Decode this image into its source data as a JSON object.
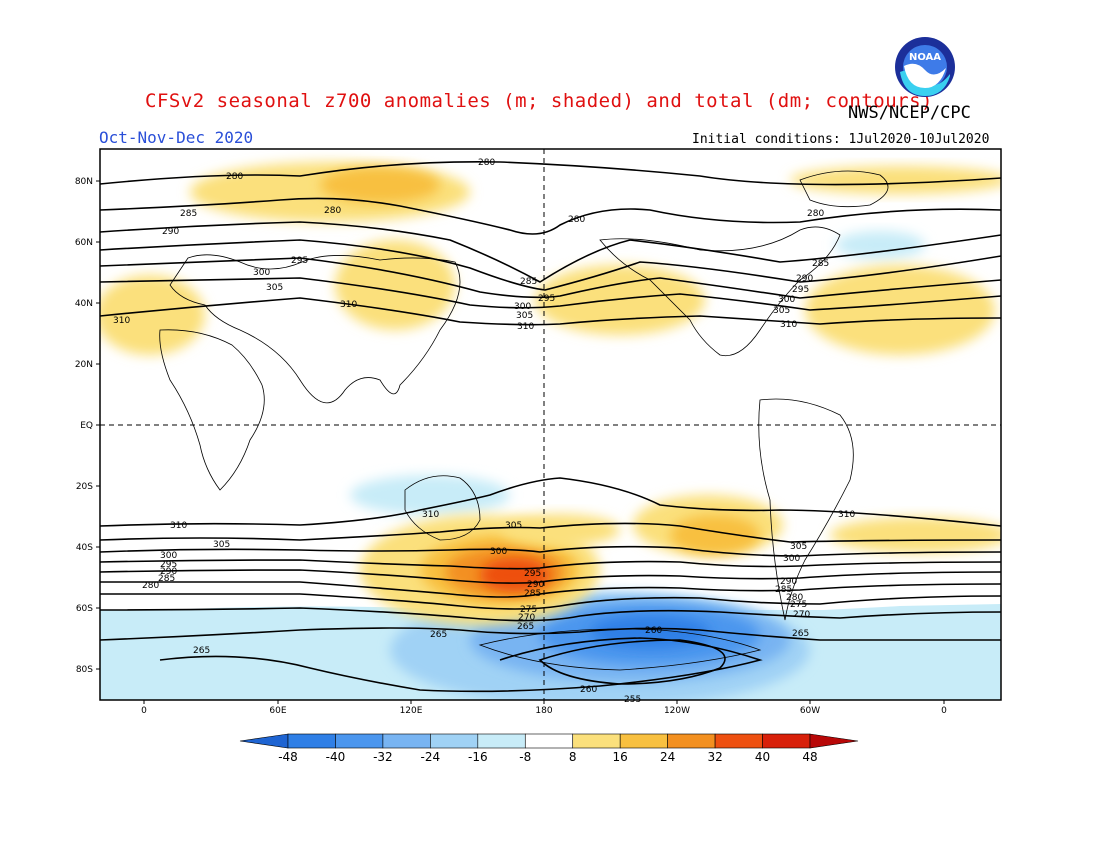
{
  "header": {
    "title": "CFSv2 seasonal z700 anomalies (m; shaded) and total (dm; contours)",
    "agency": "NWS/NCEP/CPC",
    "season": "Oct-Nov-Dec 2020",
    "initial_conditions": "Initial conditions: 1Jul2020-10Jul2020",
    "logo_text": "NOAA"
  },
  "axes": {
    "lat_ticks": [
      "80N",
      "60N",
      "40N",
      "20N",
      "EQ",
      "20S",
      "40S",
      "60S",
      "80S"
    ],
    "lon_ticks": [
      "0",
      "60E",
      "120E",
      "180",
      "120W",
      "60W",
      "0"
    ]
  },
  "colorbar": {
    "labels": [
      "-48",
      "-40",
      "-32",
      "-24",
      "-16",
      "-8",
      "8",
      "16",
      "24",
      "32",
      "40",
      "48"
    ],
    "colors": [
      "#1e64d2",
      "#2f7fe6",
      "#4b96ee",
      "#78b4f2",
      "#a0d2f5",
      "#c8ecf8",
      "#ffffff",
      "#fbe07c",
      "#f8c040",
      "#f39020",
      "#ee5010",
      "#d8200a",
      "#b80808"
    ]
  },
  "contour_labels": {
    "nh": [
      "280",
      "280",
      "280",
      "280",
      "280",
      "285",
      "285",
      "285",
      "290",
      "290",
      "295",
      "295",
      "295",
      "300",
      "300",
      "305",
      "305",
      "310",
      "310",
      "310",
      "310",
      "300",
      "305"
    ],
    "sh": [
      "310",
      "310",
      "310",
      "305",
      "305",
      "305",
      "300",
      "300",
      "300",
      "295",
      "295",
      "290",
      "290",
      "290",
      "285",
      "285",
      "285",
      "280",
      "280",
      "275",
      "275",
      "270",
      "270",
      "265",
      "265",
      "265",
      "265",
      "260",
      "260",
      "255"
    ]
  },
  "chart_data": {
    "type": "heatmap",
    "variable": "z700",
    "anomaly_units": "m",
    "contour_units": "dm",
    "anomaly_levels": [
      -48,
      -40,
      -32,
      -24,
      -16,
      -8,
      8,
      16,
      24,
      32,
      40,
      48
    ],
    "contour_levels": [
      255,
      260,
      265,
      270,
      275,
      280,
      285,
      290,
      295,
      300,
      305,
      310
    ],
    "lon_range": [
      "0",
      "60E",
      "120E",
      "180",
      "120W",
      "60W",
      "0"
    ],
    "lat_range": [
      "80N",
      "80S"
    ]
  }
}
